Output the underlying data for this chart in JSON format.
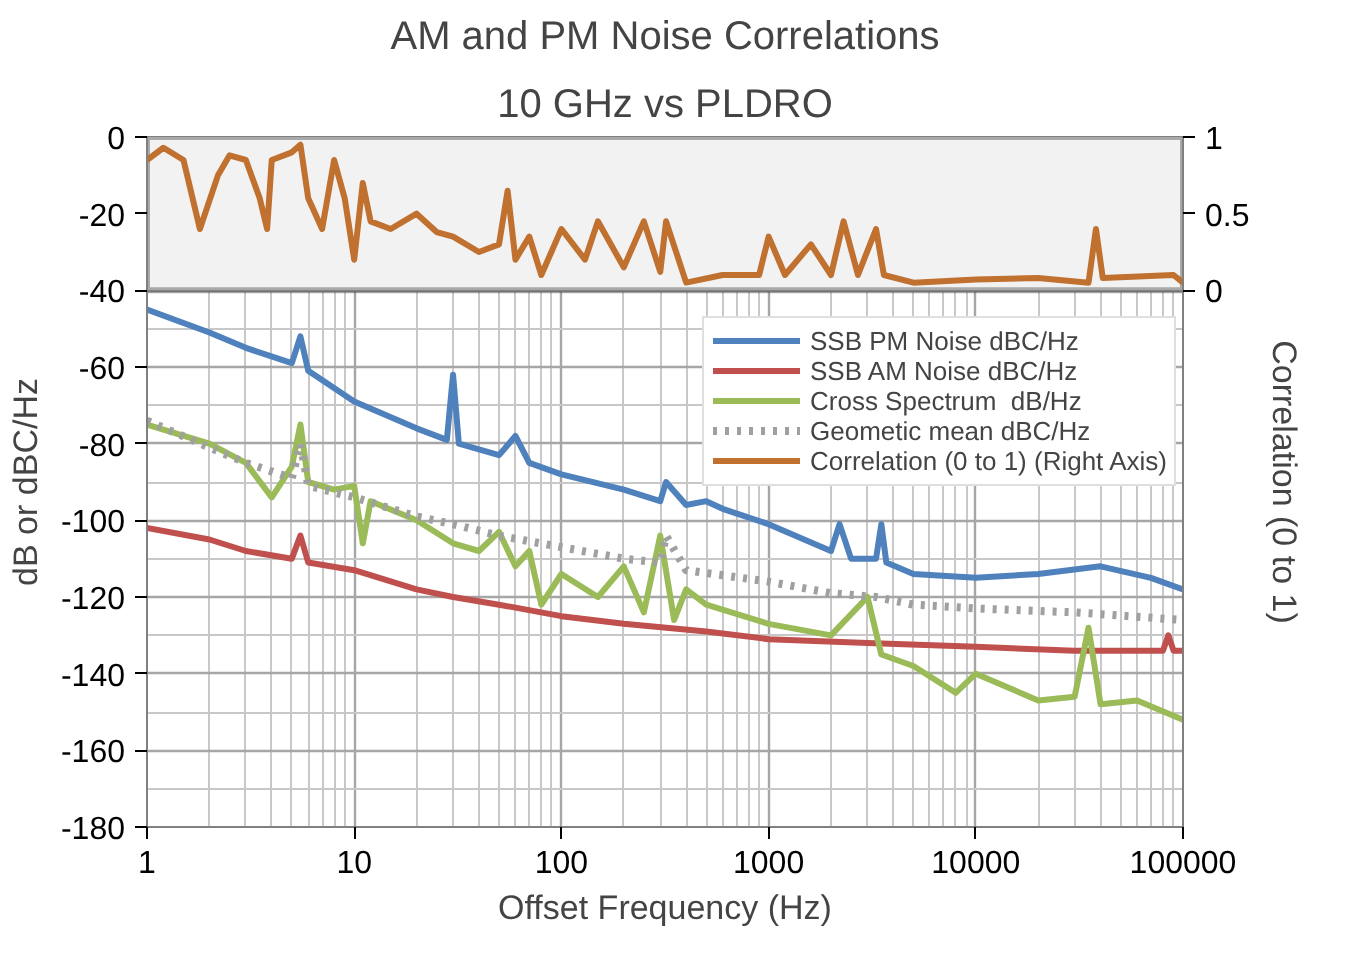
{
  "chart_data": {
    "type": "line",
    "title": "AM and PM Noise Correlations",
    "subtitle": "10 GHz vs PLDRO",
    "xlabel": "Offset Frequency (Hz)",
    "ylabel": "dB or dBC/Hz",
    "y2label": "Correlation (0 to 1)",
    "log": "x",
    "grid": true,
    "legend": "top right",
    "line_style": "solid",
    "xlim": [
      1,
      100000
    ],
    "xticks": [
      1,
      10,
      100,
      1000,
      10000,
      100000
    ],
    "ylim": [
      -180,
      0
    ],
    "yticks": [
      -180,
      -160,
      -140,
      -120,
      -100,
      -80,
      -60,
      -40,
      -20,
      0
    ],
    "y2lim": [
      -3.5,
      1
    ],
    "y2ticks": [
      0,
      0.5,
      1
    ],
    "bands": [
      {
        "axis": "y",
        "from": -40,
        "to": 0,
        "color": "#f2f2f2"
      }
    ],
    "series": [
      {
        "name": "SSB PM Noise dBC/Hz",
        "color": "#4f81bd",
        "x": [
          1,
          2,
          3,
          5,
          5.5,
          6,
          10,
          20,
          28,
          30,
          32,
          50,
          60,
          70,
          100,
          200,
          300,
          320,
          400,
          500,
          600,
          1000,
          2000,
          2200,
          2500,
          3300,
          3500,
          3700,
          5000,
          10000,
          20000,
          40000,
          70000,
          100000
        ],
        "values": [
          -45,
          -51,
          -55,
          -59,
          -52,
          -61,
          -69,
          -76,
          -79,
          -62,
          -80,
          -83,
          -78,
          -85,
          -88,
          -92,
          -95,
          -90,
          -96,
          -95,
          -97,
          -101,
          -108,
          -101,
          -110,
          -110,
          -101,
          -111,
          -114,
          -115,
          -114,
          -112,
          -115,
          -118
        ]
      },
      {
        "name": "SSB AM Noise dBC/Hz",
        "color": "#c0504d",
        "x": [
          1,
          2,
          3,
          5,
          5.5,
          6,
          10,
          20,
          30,
          50,
          100,
          200,
          500,
          1000,
          3000,
          10000,
          30000,
          80000,
          85000,
          90000,
          100000
        ],
        "values": [
          -102,
          -105,
          -108,
          -110,
          -104,
          -111,
          -113,
          -118,
          -120,
          -122,
          -125,
          -127,
          -129,
          -131,
          -132,
          -133,
          -134,
          -134,
          -130,
          -134,
          -134
        ]
      },
      {
        "name": "Cross Spectrum  dB/Hz",
        "color": "#9bbb59",
        "x": [
          1,
          2,
          3,
          4,
          5,
          5.5,
          6,
          8,
          10,
          11,
          12,
          20,
          30,
          40,
          50,
          60,
          70,
          80,
          100,
          150,
          200,
          250,
          300,
          350,
          400,
          500,
          1000,
          2000,
          3000,
          3500,
          5000,
          8000,
          10000,
          20000,
          30000,
          35000,
          40000,
          60000,
          100000
        ],
        "values": [
          -75,
          -80,
          -85,
          -94,
          -86,
          -75,
          -90,
          -92,
          -91,
          -106,
          -95,
          -100,
          -106,
          -108,
          -103,
          -112,
          -108,
          -122,
          -114,
          -120,
          -112,
          -124,
          -104,
          -126,
          -118,
          -122,
          -127,
          -130,
          -120,
          -135,
          -138,
          -145,
          -140,
          -147,
          -146,
          -128,
          -148,
          -147,
          -152
        ]
      },
      {
        "name": "Geometic mean dBC/Hz",
        "color": "#a0a0a0",
        "line_style": "dotted",
        "x": [
          1,
          2,
          3,
          5,
          5.5,
          6,
          10,
          20,
          30,
          50,
          100,
          200,
          300,
          320,
          400,
          1000,
          2000,
          3300,
          5000,
          10000,
          30000,
          100000
        ],
        "values": [
          -74,
          -81,
          -85,
          -89,
          -80,
          -91,
          -94,
          -99,
          -101,
          -104,
          -107,
          -110,
          -111,
          -104,
          -113,
          -116,
          -119,
          -120,
          -122,
          -123,
          -124,
          -126
        ]
      },
      {
        "name": "Correlation (0 to 1) (Right Axis)",
        "color": "#c0702f",
        "axis": "y2",
        "x": [
          1,
          1.2,
          1.5,
          1.8,
          2.2,
          2.5,
          3,
          3.5,
          3.8,
          4,
          5,
          5.5,
          6,
          7,
          8,
          9,
          10,
          11,
          12,
          15,
          20,
          25,
          30,
          40,
          50,
          55,
          60,
          70,
          80,
          100,
          130,
          150,
          200,
          250,
          300,
          320,
          400,
          600,
          900,
          1000,
          1200,
          1600,
          2000,
          2300,
          2700,
          3300,
          3600,
          5000,
          10000,
          20000,
          35000,
          38000,
          41000,
          90000,
          100000
        ],
        "values": [
          0.85,
          0.93,
          0.85,
          0.4,
          0.75,
          0.88,
          0.85,
          0.6,
          0.4,
          0.85,
          0.9,
          0.95,
          0.6,
          0.4,
          0.85,
          0.6,
          0.2,
          0.7,
          0.45,
          0.4,
          0.5,
          0.38,
          0.35,
          0.25,
          0.3,
          0.65,
          0.2,
          0.35,
          0.1,
          0.4,
          0.2,
          0.45,
          0.15,
          0.45,
          0.12,
          0.45,
          0.05,
          0.1,
          0.1,
          0.35,
          0.1,
          0.3,
          0.1,
          0.45,
          0.1,
          0.4,
          0.1,
          0.05,
          0.07,
          0.08,
          0.05,
          0.4,
          0.08,
          0.1,
          0.05
        ]
      }
    ]
  }
}
